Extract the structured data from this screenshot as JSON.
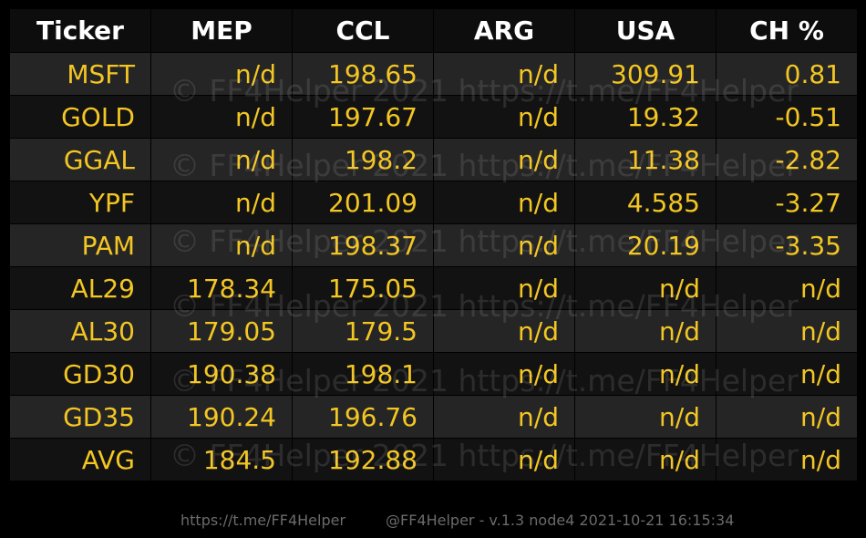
{
  "table": {
    "headers": [
      "Ticker",
      "MEP",
      "CCL",
      "ARG",
      "USA",
      "CH %"
    ],
    "rows": [
      [
        "MSFT",
        "n/d",
        "198.65",
        "n/d",
        "309.91",
        "0.81"
      ],
      [
        "GOLD",
        "n/d",
        "197.67",
        "n/d",
        "19.32",
        "-0.51"
      ],
      [
        "GGAL",
        "n/d",
        "198.2",
        "n/d",
        "11.38",
        "-2.82"
      ],
      [
        "YPF",
        "n/d",
        "201.09",
        "n/d",
        "4.585",
        "-3.27"
      ],
      [
        "PAM",
        "n/d",
        "198.37",
        "n/d",
        "20.19",
        "-3.35"
      ],
      [
        "AL29",
        "178.34",
        "175.05",
        "n/d",
        "n/d",
        "n/d"
      ],
      [
        "AL30",
        "179.05",
        "179.5",
        "n/d",
        "n/d",
        "n/d"
      ],
      [
        "GD30",
        "190.38",
        "198.1",
        "n/d",
        "n/d",
        "n/d"
      ],
      [
        "GD35",
        "190.24",
        "196.76",
        "n/d",
        "n/d",
        "n/d"
      ],
      [
        "AVG",
        "184.5",
        "192.88",
        "n/d",
        "n/d",
        "n/d"
      ]
    ]
  },
  "watermark": {
    "text": "© FF4Helper 2021 https://t.me/FF4Helper"
  },
  "footer": {
    "link": "https://t.me/FF4Helper",
    "info": "@FF4Helper - v.1.3 node4 2021-10-21 16:15:34"
  },
  "colors": {
    "background": "#000000",
    "header_text": "#ffffff",
    "value_text": "#f3c623",
    "row_odd": "#252525",
    "row_even": "#121212",
    "footer_text": "#6b6b6b"
  }
}
